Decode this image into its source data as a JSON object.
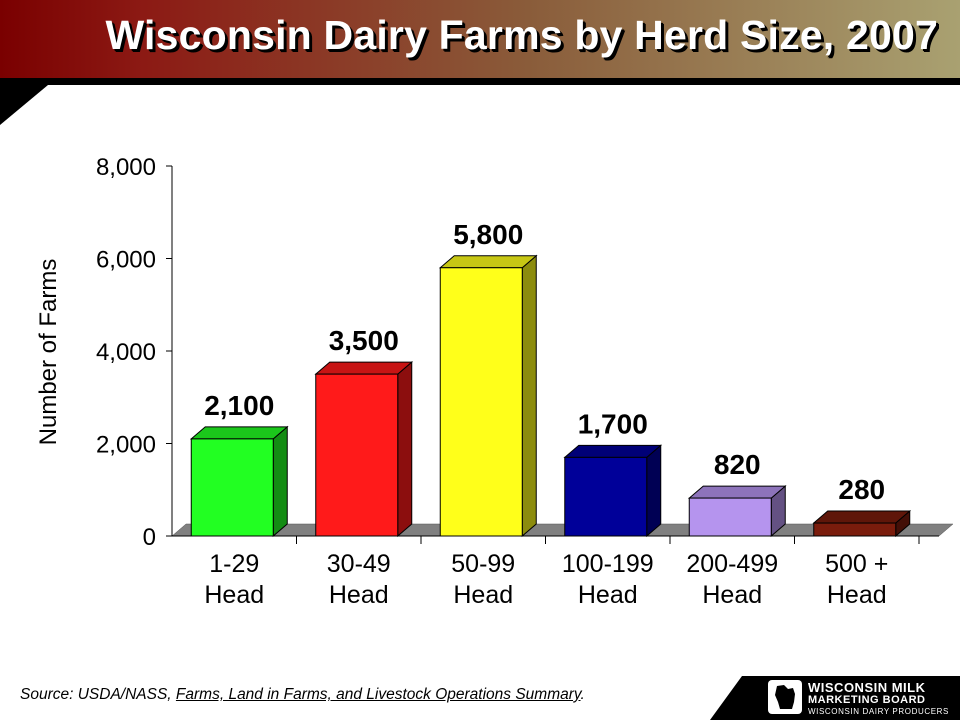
{
  "title": "Wisconsin Dairy Farms by Herd Size, 2007",
  "source": {
    "prefix": "Source:  USDA/NASS, ",
    "publication": "Farms, Land in Farms, and Livestock Operations Summary",
    "suffix": "."
  },
  "logo": {
    "line1": "WISCONSIN MILK",
    "line2": "MARKETING BOARD",
    "line3": "WISCONSIN DAIRY PRODUCERS"
  },
  "chart_data": {
    "type": "bar",
    "title": "Wisconsin Dairy Farms by Herd Size, 2007",
    "ylabel": "Number of Farms",
    "xlabel": "",
    "ylim": [
      0,
      8000
    ],
    "yticks": [
      0,
      2000,
      4000,
      6000,
      8000
    ],
    "ytick_labels": [
      "0",
      "2,000",
      "4,000",
      "6,000",
      "8,000"
    ],
    "categories": [
      [
        "1-29",
        "Head"
      ],
      [
        "30-49",
        "Head"
      ],
      [
        "50-99",
        "Head"
      ],
      [
        "100-199",
        "Head"
      ],
      [
        "200-499",
        "Head"
      ],
      [
        "500 +",
        "Head"
      ]
    ],
    "values": [
      2100,
      3500,
      5800,
      1700,
      820,
      280
    ],
    "value_labels": [
      "2,100",
      "3,500",
      "5,800",
      "1,700",
      "820",
      "280"
    ],
    "colors": [
      "#22ff22",
      "#ff1a1a",
      "#ffff1a",
      "#000099",
      "#b594ee",
      "#7a1c0c"
    ],
    "grid": false,
    "style": "3d"
  }
}
